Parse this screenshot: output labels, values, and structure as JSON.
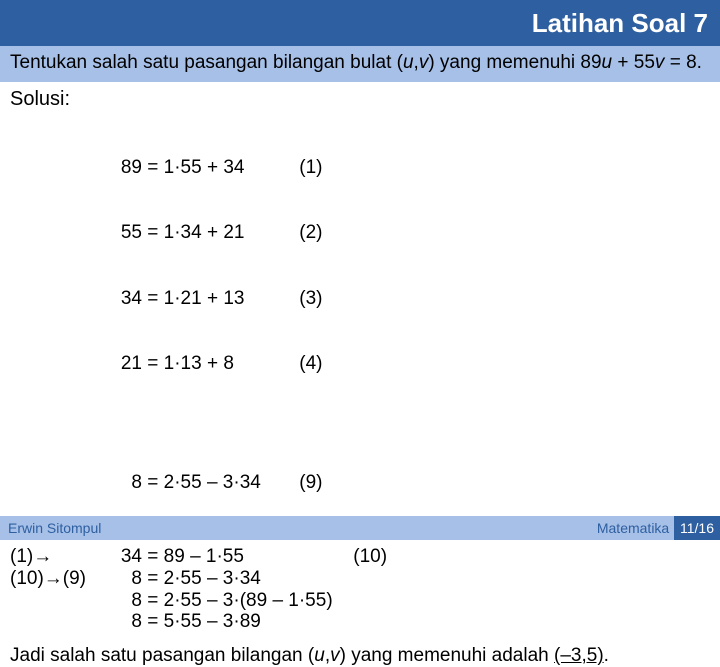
{
  "colors": {
    "titlebar_bg": "#2e5fa0",
    "subheader_bg": "#a6c0e8",
    "footer_bg": "#a6c0e8",
    "footer_text": "#2e5fa0",
    "pgnum_bg": "#2e5fa0",
    "text": "#000000",
    "title_text": "#ffffff"
  },
  "title": "Latihan Soal 7",
  "problem_pre": "Tentukan salah satu pasangan bilangan bulat (",
  "problem_u": "u",
  "problem_comma": ",",
  "problem_v": "v",
  "problem_mid": ") yang memenuhi 89",
  "problem_u2": "u",
  "problem_plus": " + 55",
  "problem_v2": "v",
  "problem_end": " = 8.",
  "solusi": "Solusi:",
  "eq1": [
    {
      "lhs": "89",
      "rhs": "= 1·55 + 34",
      "tag": "(1)"
    },
    {
      "lhs": "55",
      "rhs": "= 1·34 + 21",
      "tag": "(2)"
    },
    {
      "lhs": "34",
      "rhs": "= 1·21 + 13",
      "tag": "(3)"
    },
    {
      "lhs": "21",
      "rhs": "= 1·13 + 8",
      "tag": "(4)"
    }
  ],
  "eq1b": {
    "lhs": "8",
    "rhs": "= 2·55 – 3·34",
    "tag": "(9)"
  },
  "eq2": [
    {
      "pre": "(1)→",
      "lhs": "34",
      "rhs": "= 89 – 1·55",
      "tag": "(10)"
    },
    {
      "pre": "(10)→(9)",
      "lhs": "8",
      "rhs": "= 2·55 – 3·34",
      "tag": ""
    },
    {
      "pre": "",
      "lhs": "8",
      "rhs": "= 2·55 – 3·(89 – 1·55)",
      "tag": ""
    },
    {
      "pre": "",
      "lhs": "8",
      "rhs": "= 5·55 – 3·89",
      "tag": ""
    }
  ],
  "concl_pre": "Jadi salah satu pasangan bilangan (",
  "concl_u": "u",
  "concl_comma": ",",
  "concl_v": "v",
  "concl_mid": ") yang memenuhi adalah ",
  "concl_ans": "(–3,5)",
  "concl_dot": ".",
  "footer_left": "Erwin Sitompul",
  "footer_right": "Matematika Diskrit",
  "page_number": "11/16"
}
